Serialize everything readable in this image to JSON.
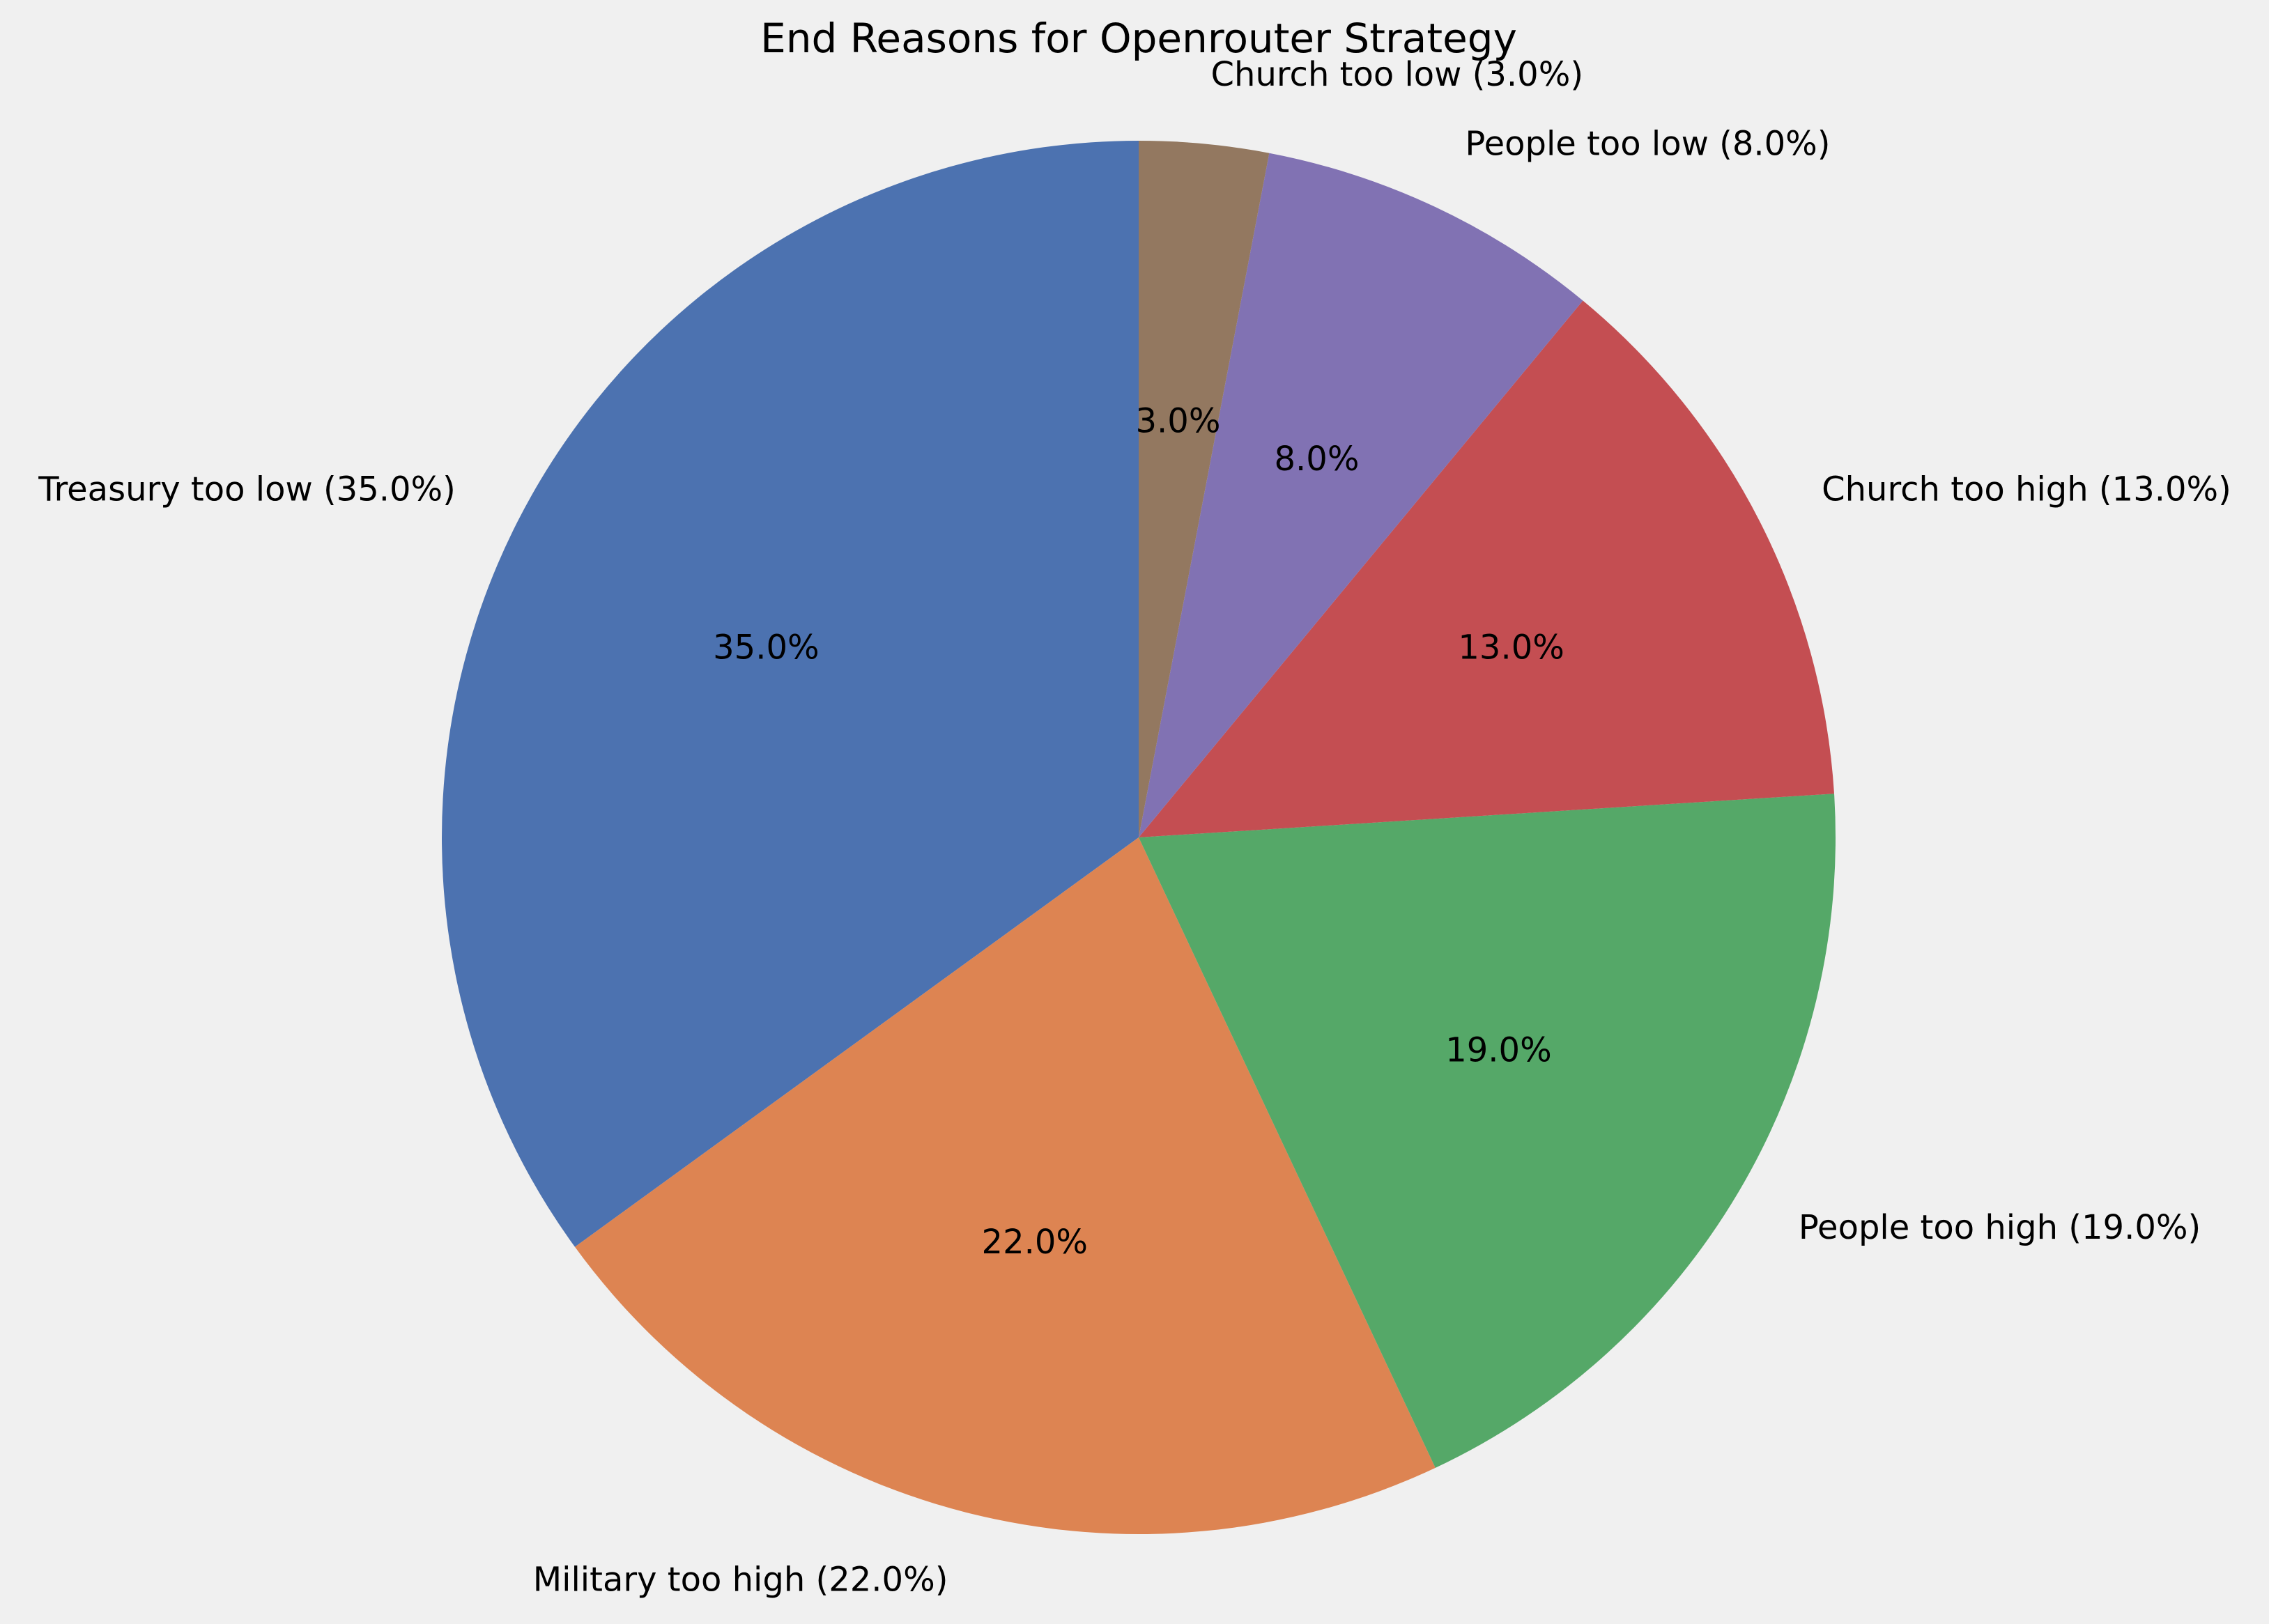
{
  "chart_data": {
    "type": "pie",
    "title": "End Reasons for Openrouter Strategy",
    "start_angle_deg": 90,
    "direction": "counterclockwise",
    "slices": [
      {
        "label": "Treasury too low (35.0%)",
        "pct_label": "35.0%",
        "value": 35.0,
        "color": "#4c72b0"
      },
      {
        "label": "Military too high (22.0%)",
        "pct_label": "22.0%",
        "value": 22.0,
        "color": "#dd8452"
      },
      {
        "label": "People too high (19.0%)",
        "pct_label": "19.0%",
        "value": 19.0,
        "color": "#55a868"
      },
      {
        "label": "Church too high (13.0%)",
        "pct_label": "13.0%",
        "value": 13.0,
        "color": "#c44e52"
      },
      {
        "label": "People too low (8.0%)",
        "pct_label": "8.0%",
        "value": 8.0,
        "color": "#8172b3"
      },
      {
        "label": "Church too low (3.0%)",
        "pct_label": "3.0%",
        "value": 3.0,
        "color": "#937860"
      }
    ],
    "legend": "none",
    "background": "#f0f0f0"
  }
}
